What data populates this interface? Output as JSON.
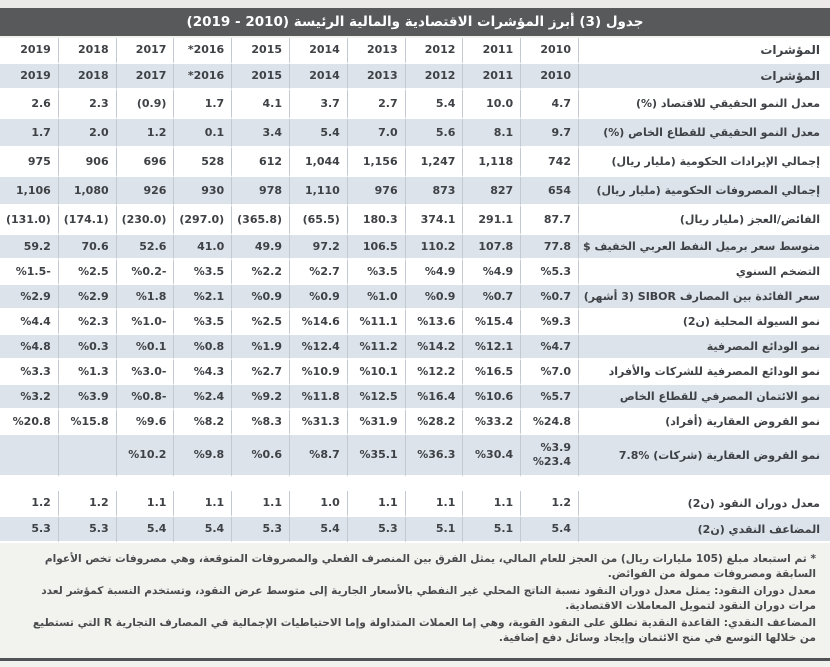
{
  "page": {
    "title": "جدول (3) أبرز المؤشرات الاقتصادية والمالية الرئيسة (2010 - 2019)"
  },
  "table": {
    "indicator_header": "المؤشرات",
    "header_rows": 2,
    "years": [
      "2010",
      "2011",
      "2012",
      "2013",
      "2014",
      "2015",
      "*2016",
      "2017",
      "2018",
      "2019"
    ],
    "rows": [
      {
        "label": "معدل النمو الحقيقي للاقتصاد  (%)",
        "values": [
          "4.7",
          "10.0",
          "5.4",
          "2.7",
          "3.7",
          "4.1",
          "1.7",
          "(0.9)",
          "2.3",
          "2.6"
        ]
      },
      {
        "label": "معدل النمو الحقيقي للقطاع الخاص  (%)",
        "values": [
          "9.7",
          "8.1",
          "5.6",
          "7.0",
          "5.4",
          "3.4",
          "0.1",
          "1.2",
          "2.0",
          "1.7"
        ]
      },
      {
        "label": "إجمالي الإيرادات الحكومية (مليار ريال)",
        "values": [
          "742",
          "1,118",
          "1,247",
          "1,156",
          "1,044",
          "612",
          "528",
          "696",
          "906",
          "975"
        ]
      },
      {
        "label": "إجمالي المصروفات الحكومية (مليار ريال)",
        "values": [
          "654",
          "827",
          "873",
          "976",
          "1,110",
          "978",
          "930",
          "926",
          "1,080",
          "1,106"
        ]
      },
      {
        "label": "الفائض/العجز (مليار ريال)",
        "values": [
          "87.7",
          "291.1",
          "374.1",
          "180.3",
          "(65.5)",
          "(365.8)",
          "(297.0)",
          "(230.0)",
          "(174.1)",
          "(131.0)"
        ]
      },
      {
        "label": "متوسط سعر برميل النفط العربي الخفيف $",
        "values": [
          "77.8",
          "107.8",
          "110.2",
          "106.5",
          "97.2",
          "49.9",
          "41.0",
          "52.6",
          "70.6",
          "59.2"
        ]
      },
      {
        "label": "التضخم السنوي",
        "values": [
          "%5.3",
          "%4.9",
          "%4.9",
          "%3.5",
          "%2.7",
          "%2.2",
          "%3.5",
          "%0.2-",
          "%2.5",
          "%1.5-"
        ]
      },
      {
        "label": "سعر الفائدة بين المصارف SIBOR (3 أشهر)",
        "values": [
          "%0.7",
          "%0.7",
          "%0.9",
          "%1.0",
          "%0.9",
          "%0.9",
          "%2.1",
          "%1.8",
          "%2.9",
          "%2.9"
        ]
      },
      {
        "label": "نمو السيولة المحلية (ن2)",
        "values": [
          "%9.3",
          "%15.4",
          "%13.6",
          "%11.1",
          "%14.6",
          "%2.5",
          "%3.5",
          "%1.0-",
          "%2.3",
          "%4.4"
        ]
      },
      {
        "label": "نمو الودائع المصرفية",
        "values": [
          "%4.7",
          "%12.1",
          "%14.2",
          "%11.2",
          "%12.4",
          "%1.9",
          "%0.8",
          "%0.1",
          "%0.3",
          "%4.8"
        ]
      },
      {
        "label": "نمو الودائع المصرفية للشركات والأفراد",
        "values": [
          "%7.0",
          "%16.5",
          "%12.2",
          "%10.1",
          "%10.9",
          "%2.7",
          "%4.3",
          "%3.0-",
          "%1.3",
          "%3.3"
        ]
      },
      {
        "label": "نمو الائتمان المصرفي للقطاع الخاص",
        "values": [
          "%5.7",
          "%10.6",
          "%16.4",
          "%12.5",
          "%11.8",
          "%9.2",
          "%2.4",
          "%0.8-",
          "%3.9",
          "%3.2"
        ]
      },
      {
        "label": "نمو القروض العقارية (أفراد)",
        "values": [
          "%24.8",
          "%33.2",
          "%28.2",
          "%31.9",
          "%31.3",
          "%8.3",
          "%8.2",
          "%9.6",
          "%15.8",
          "%20.8"
        ]
      },
      {
        "label": "نمو القروض العقارية (شركات) %7.8",
        "values": [
          "%3.9\n%23.4",
          "%30.4",
          "%36.3",
          "%35.1",
          "%8.7",
          "%0.6",
          "%9.8",
          "%10.2",
          "",
          ""
        ]
      },
      {
        "label": "معدل دوران النقود (ن2)",
        "gap_before": true,
        "values": [
          "1.2",
          "1.1",
          "1.1",
          "1.1",
          "1.0",
          "1.1",
          "1.1",
          "1.1",
          "1.2",
          "1.2"
        ]
      },
      {
        "label": "المضاعف النقدي (ن2)",
        "values": [
          "5.4",
          "5.1",
          "5.1",
          "5.3",
          "5.4",
          "5.3",
          "5.4",
          "5.4",
          "5.3",
          "5.3"
        ]
      }
    ]
  },
  "footnotes": [
    "* تم استبعاد مبلغ (105 مليارات ريال) من العجز للعام المالي، يمثل الفرق بين المنصرف الفعلي والمصروفات المتوقعة، وهي مصروفات تخص الأعوام السابقة ومصروفات ممولة من الفوائض.",
    "معدل دوران النقود: يمثل معدل دوران النقود نسبة الناتج المحلي غير النفطي بالأسعار الجارية إلى متوسط عرض النقود، وتستخدم النسبة كمؤشر لعدد مرات دوران النقود لتمويل المعاملات الاقتصادية.",
    "المضاعف النقدي: القاعدة النقدية تطلق على النقود القوية، وهي إما العملات المتداولة وإما الاحتياطيات الإجمالية في المصارف التجارية R التي تستطيع من خلالها التوسع في منح الائتمان وإيجاد وسائل دفع إضافية."
  ],
  "colors": {
    "title_bar": "#58595b",
    "row_shaded": "#dce3ea",
    "row_white": "#ffffff",
    "cell_border": "#c3cad1",
    "text": "#3e4145",
    "bottom_rule": "#515256"
  }
}
